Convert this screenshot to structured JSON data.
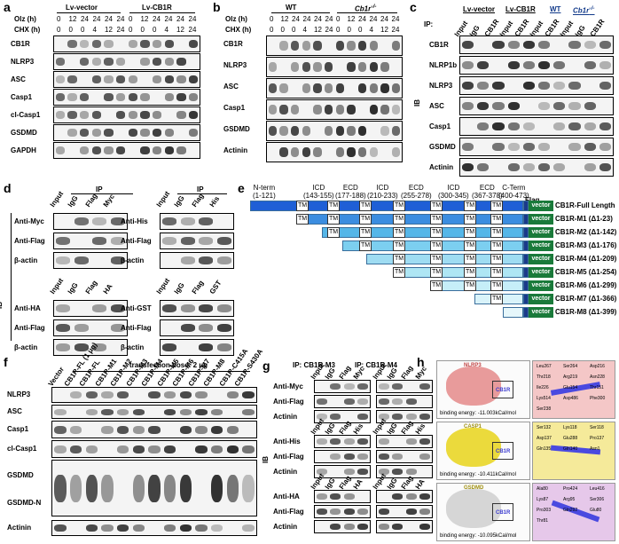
{
  "panels": {
    "a": {
      "label": "a",
      "groups": [
        "Lv-vector",
        "Lv-CB1R"
      ],
      "olz_label": "Olz (h)",
      "chx_label": "CHX (h)",
      "olz": [
        "0",
        "12",
        "24",
        "24",
        "24",
        "24",
        "0",
        "12",
        "24",
        "24",
        "24",
        "24"
      ],
      "chx": [
        "0",
        "0",
        "0",
        "4",
        "12",
        "24",
        "0",
        "0",
        "0",
        "4",
        "12",
        "24"
      ],
      "rows": [
        "CB1R",
        "NLRP3",
        "ASC",
        "Casp1",
        "cl-Casp1",
        "GSDMD",
        "GAPDH"
      ]
    },
    "b": {
      "label": "b",
      "groups": [
        "WT",
        "Cb1r"
      ],
      "olz_label": "Olz (h)",
      "chx_label": "CHX (h)",
      "olz": [
        "0",
        "12",
        "24",
        "24",
        "24",
        "24",
        "0",
        "12",
        "24",
        "24",
        "24",
        "24"
      ],
      "chx": [
        "0",
        "0",
        "0",
        "4",
        "12",
        "24",
        "0",
        "0",
        "0",
        "4",
        "12",
        "24"
      ],
      "rows": [
        "CB1R",
        "NLRP3",
        "ASC",
        "Casp1",
        "GSDMD",
        "Actinin"
      ]
    },
    "c": {
      "label": "c",
      "ip": "IP:",
      "ib": "IB",
      "groups": [
        "Lv-vector",
        "Lv-CB1R",
        "WT",
        "Cb1r"
      ],
      "lanes": [
        "Input",
        "IgG",
        "CB1R",
        "Input",
        "CB1R",
        "Input",
        "CB1R",
        "Input",
        "IgG",
        "CB1R"
      ],
      "rows": [
        "CB1R",
        "NLRP1b",
        "NLRP3",
        "ASC",
        "Casp1",
        "GSDMD",
        "Actinin"
      ]
    },
    "d": {
      "label": "d",
      "ib": "IB",
      "ip": "IP",
      "blocks": [
        {
          "lanes": [
            "Input",
            "IgG",
            "Flag",
            "Myc"
          ],
          "rows": [
            "Anti-Myc",
            "Anti-Flag",
            "β-actin"
          ]
        },
        {
          "lanes": [
            "Input",
            "IgG",
            "Flag",
            "His"
          ],
          "rows": [
            "Anti-His",
            "Anti-Flag",
            "β-actin"
          ]
        },
        {
          "lanes": [
            "Input",
            "IgG",
            "Flag",
            "HA"
          ],
          "rows": [
            "Anti-HA",
            "Anti-Flag",
            "β-actin"
          ]
        },
        {
          "lanes": [
            "Input",
            "IgG",
            "Flag",
            "GST"
          ],
          "rows": [
            "Anti-GST",
            "Anti-Flag",
            "β-actin"
          ]
        }
      ]
    },
    "e": {
      "label": "e",
      "domains": [
        "N-term\n(1-121)",
        "ICD\n(143-155)",
        "ECD\n(177-188)",
        "ICD\n(210-233)",
        "ECD\n(255-278)",
        "ICD\n(300-345)",
        "ECD\n(367-378)",
        "C-Term\n(400-473)"
      ],
      "tm": "TM",
      "flag": "Flag",
      "vector": "vector",
      "constructs": [
        "CB1R-Full Length",
        "CB1R-M1 (Δ1-23)",
        "CB1R-M2 (Δ1-142)",
        "CB1R-M3 (Δ1-176)",
        "CB1R-M4 (Δ1-209)",
        "CB1R-M5 (Δ1-254)",
        "CB1R-M6 (Δ1-299)",
        "CB1R-M7 (Δ1-366)",
        "CB1R-M8 (Δ1-399)"
      ]
    },
    "f": {
      "label": "f",
      "dose": "transfection dose: 2 μg",
      "lanes": [
        "Vector",
        "CB1R-FL (1 μg)",
        "CB1R-FL",
        "CB1R-M1",
        "CB1R-M2",
        "CB1R-M3",
        "CB1R-M4",
        "CB1R-M5",
        "CB1R-M6",
        "CB1R-M7",
        "CB1R-M8",
        "CB1R-C415A",
        "CB1R-S430A"
      ],
      "rows": [
        "NLRP3",
        "ASC",
        "Casp1",
        "cl-Casp1",
        "GSDMD",
        "GSDMD-N",
        "Actinin"
      ]
    },
    "g": {
      "label": "g",
      "ib": "IB",
      "ip_titles": [
        "IP: CB1R-M3",
        "IP: CB1R-M4"
      ],
      "blocks": [
        {
          "lanes": [
            "Input",
            "IgG",
            "Flag",
            "Myc"
          ],
          "rows": [
            "Anti-Myc",
            "Anti-Flag",
            "Actinin"
          ]
        },
        {
          "lanes": [
            "Input",
            "IgG",
            "Flag",
            "His"
          ],
          "rows": [
            "Anti-His",
            "Anti-Flag",
            "Actinin"
          ]
        },
        {
          "lanes": [
            "Input",
            "IgG",
            "Flag",
            "HA"
          ],
          "rows": [
            "Anti-HA",
            "Anti-Flag",
            "Actinin"
          ]
        }
      ]
    },
    "h": {
      "label": "h",
      "docks": [
        {
          "protein": "NLRP3",
          "ligand": "CB1R",
          "energy": "binding energy: -11.003kCal/mol",
          "residues": [
            "Leu267",
            "Ser264",
            "Asp216",
            "Thr218",
            "Arg219",
            "Asn228",
            "Ile226",
            "Glu154",
            "Thr151",
            "Lys514",
            "Asp486",
            "Phe300",
            "Ser238"
          ]
        },
        {
          "protein": "CASP1",
          "ligand": "CB1R",
          "energy": "binding energy: -10.411kCal/mol",
          "residues": [
            "Ser132",
            "Lys118",
            "Ser118",
            "Asp137",
            "Glu288",
            "Pro137",
            "Gln135",
            "Gln140",
            "Asn1"
          ]
        },
        {
          "protein": "GSDMD",
          "ligand": "CB1R",
          "energy": "binding energy: -10.095kCal/mol",
          "residues": [
            "Ala80",
            "Pro424",
            "Leu416",
            "Lys87",
            "Arg95",
            "Ser306",
            "Pro303",
            "Gln292",
            "Glu80",
            "Thr81"
          ]
        }
      ]
    }
  }
}
